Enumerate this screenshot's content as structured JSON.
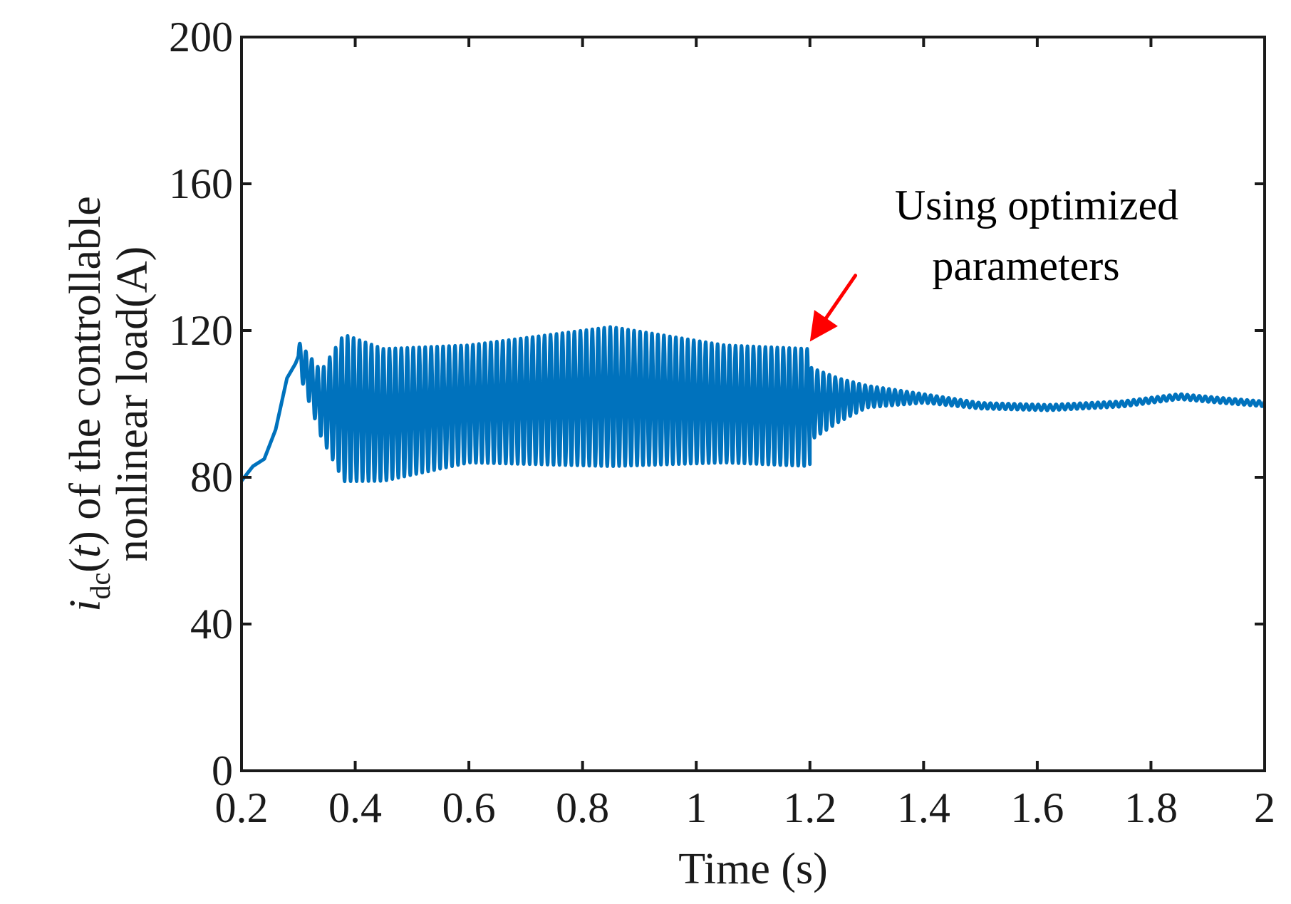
{
  "chart_data": {
    "type": "line",
    "title": "",
    "xlabel": "Time (s)",
    "ylabel": {
      "symbol": "i",
      "subscript": "dc",
      "open": "(",
      "arg": "t",
      "close": ")",
      "line1_rest": " of the controllable",
      "line2": "nonlinear load(A)"
    },
    "xlim": [
      0.2,
      2.0
    ],
    "ylim": [
      0,
      200
    ],
    "xticks": [
      0.2,
      0.4,
      0.6,
      0.8,
      1,
      1.2,
      1.4,
      1.6,
      1.8,
      2
    ],
    "xtick_labels": [
      "0.2",
      "0.4",
      "0.6",
      "0.8",
      "1",
      "1.2",
      "1.4",
      "1.6",
      "1.8",
      "2"
    ],
    "yticks": [
      0,
      40,
      80,
      120,
      160,
      200
    ],
    "ytick_labels": [
      "0",
      "40",
      "80",
      "120",
      "160",
      "200"
    ],
    "grid": false,
    "series": [
      {
        "name": "i_dc(t)",
        "color": "#0072BD",
        "segments": [
          {
            "kind": "curve",
            "x": [
              0.2,
              0.22,
              0.24,
              0.26,
              0.28,
              0.295
            ],
            "y": [
              79,
              83,
              85,
              93,
              107,
              111
            ]
          },
          {
            "kind": "oscillation",
            "x_start": 0.3,
            "x_end": 1.2,
            "period": 0.0105,
            "center": [
              [
                0.3,
                113
              ],
              [
                0.34,
                100
              ],
              [
                0.45,
                97
              ],
              [
                0.6,
                100
              ],
              [
                0.85,
                102
              ],
              [
                1.05,
                100
              ],
              [
                1.2,
                99
              ]
            ],
            "amplitude": [
              [
                0.3,
                4
              ],
              [
                0.34,
                9
              ],
              [
                0.38,
                20
              ],
              [
                0.45,
                18
              ],
              [
                0.6,
                16
              ],
              [
                0.85,
                19
              ],
              [
                1.05,
                16
              ],
              [
                1.2,
                16
              ]
            ]
          },
          {
            "kind": "oscillation",
            "x_start": 1.2,
            "x_end": 2.0,
            "period": 0.0105,
            "center": [
              [
                1.2,
                100
              ],
              [
                1.3,
                102
              ],
              [
                1.4,
                101.5
              ],
              [
                1.5,
                99.5
              ],
              [
                1.62,
                99
              ],
              [
                1.75,
                100
              ],
              [
                1.85,
                102
              ],
              [
                1.92,
                101
              ],
              [
                2.0,
                100
              ]
            ],
            "amplitude": [
              [
                1.2,
                10
              ],
              [
                1.25,
                6
              ],
              [
                1.3,
                3
              ],
              [
                1.4,
                1.2
              ],
              [
                1.5,
                0.8
              ],
              [
                2.0,
                0.7
              ]
            ]
          }
        ]
      }
    ],
    "annotation": {
      "lines": [
        "Using optimized",
        "parameters"
      ],
      "arrow_tip": [
        1.2,
        117
      ],
      "arrow_tail": [
        1.28,
        135
      ],
      "color": "#FF0000"
    }
  }
}
